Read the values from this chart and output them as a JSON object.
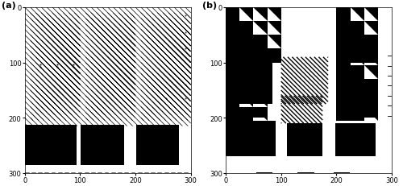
{
  "figsize": [
    5.0,
    2.32
  ],
  "dpi": 100,
  "label_a": "(a)",
  "label_b": "(b)",
  "xlim": [
    0,
    300
  ],
  "ylim": [
    300,
    0
  ],
  "xticks": [
    0,
    100,
    200,
    300
  ],
  "yticks": [
    0,
    100,
    200,
    300
  ],
  "tick_fontsize": 6,
  "label_fontsize": 8,
  "black": "#000000",
  "white": "#ffffff",
  "S": 25,
  "B": 100,
  "N": 300,
  "diag_lw_a": 0.5,
  "diag_lw_b": 1.0,
  "diag_step_a": 10,
  "diag_step_b": 8,
  "bottom_y": 213,
  "bottom_h": 72,
  "dot_rows": [
    103,
    108
  ],
  "dot_cols": [
    28,
    58,
    88
  ],
  "bottom_dash_step": 12,
  "bottom_dash_len": 7
}
